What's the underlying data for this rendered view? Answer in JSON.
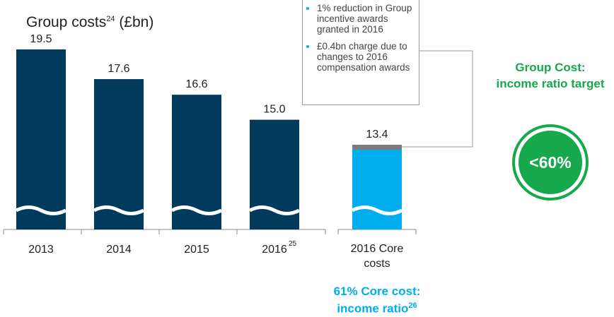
{
  "chart_data": {
    "type": "bar",
    "title": "Group costs",
    "title_footnote": "24",
    "title_unit": "(£bn)",
    "categories": [
      "2013",
      "2014",
      "2015",
      "2016"
    ],
    "footnote": "25",
    "values": [
      19.5,
      17.6,
      16.6,
      15.0
    ],
    "value_labels": [
      "19.5",
      "17.6",
      "16.6",
      "15.0"
    ],
    "color": "#003a5c",
    "core": {
      "category": "2016 Core costs",
      "value": 13.4,
      "color": "#00aeef",
      "cap_color": "#7b7b7b"
    },
    "annotation": [
      "1% reduction in Group incentive awards granted in 2016",
      "£0.4bn charge due to changes to 2016 compensation awards"
    ],
    "target": {
      "title": "Group Cost: income ratio target",
      "value_label": "<60%",
      "color": "#16a94b"
    },
    "core_note": {
      "text": "61% Core cost: income ratio",
      "footnote": "26"
    }
  }
}
